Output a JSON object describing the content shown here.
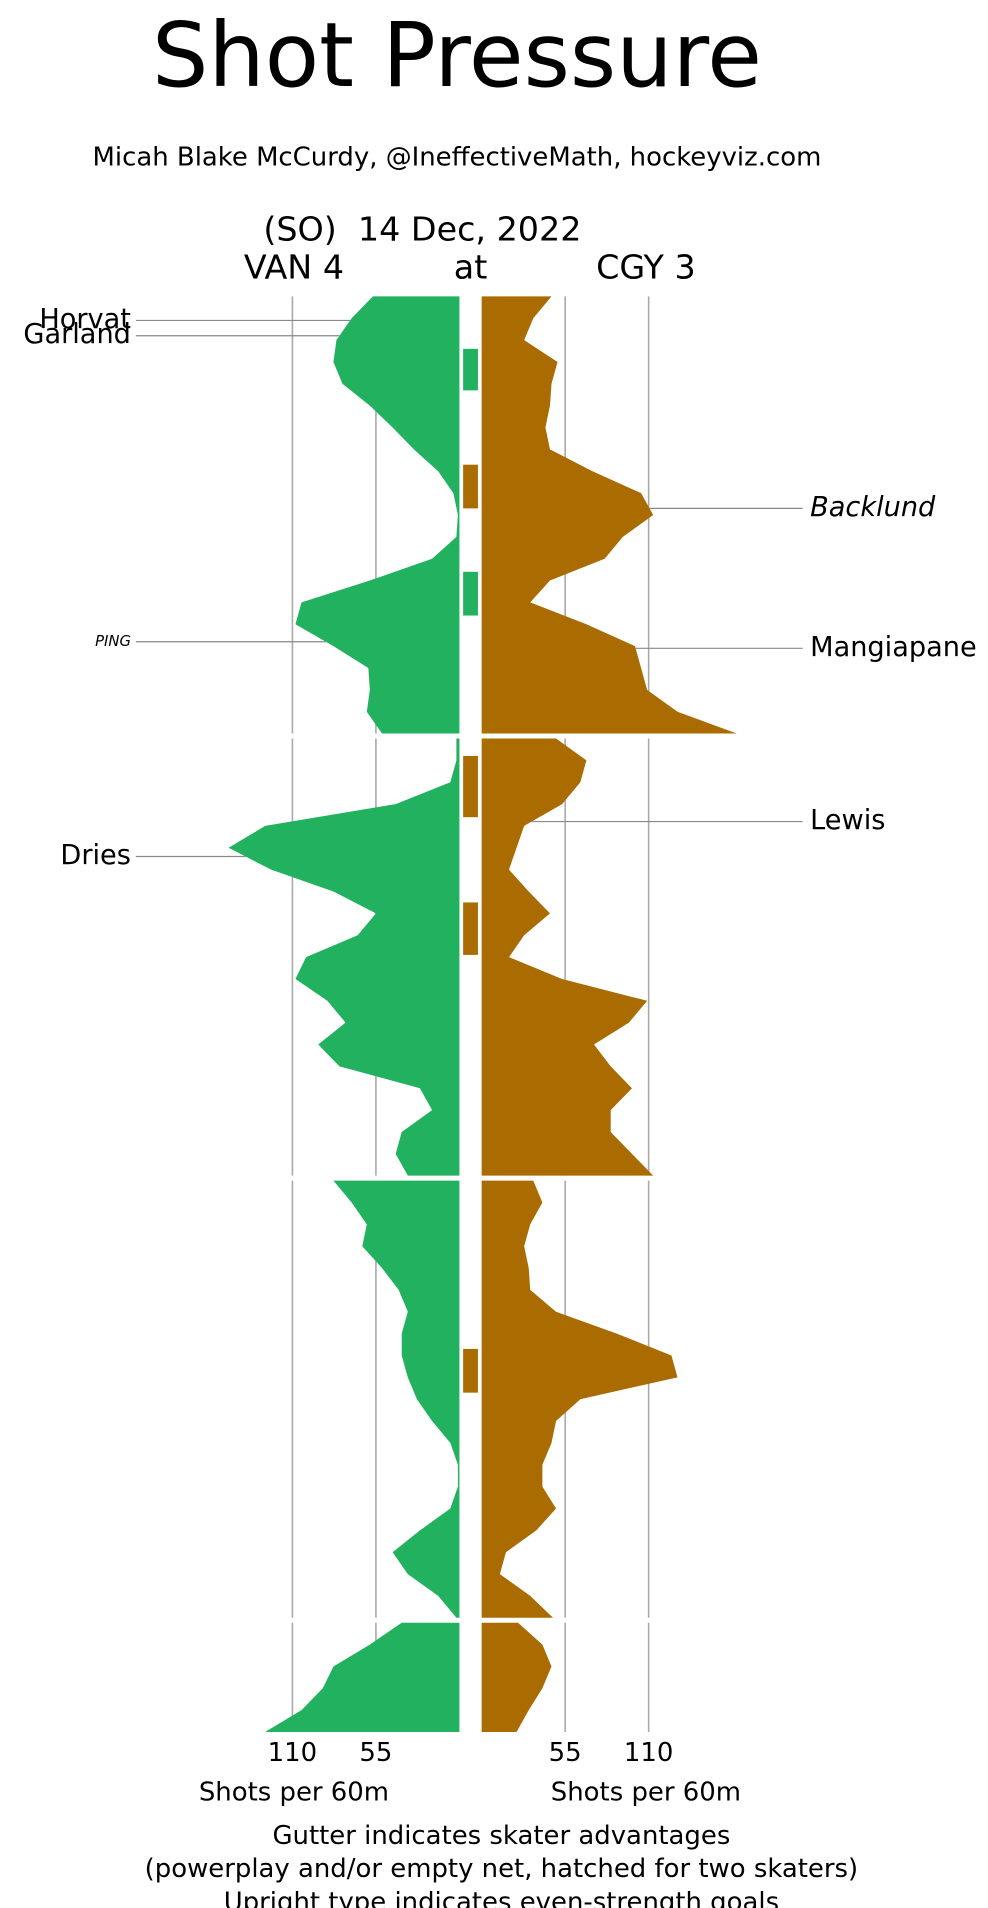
{
  "chart_data": {
    "type": "mirror-area",
    "title": "Shot Pressure",
    "subtitle": "Micah Blake McCurdy, @IneffectiveMath, hockeyviz.com",
    "header": "(SO)  14 Dec, 2022",
    "center_label": "at",
    "x_label": "Shots per 60m",
    "notes": [
      "Gutter indicates skater advantages",
      "(powerplay and/or empty net, hatched for two skaters)",
      "Upright type indicates even-strength goals"
    ],
    "xlim": [
      0,
      170
    ],
    "xticks": [
      55,
      110
    ],
    "grid": true,
    "x": [
      [
        0,
        1,
        2,
        3,
        4,
        5,
        6,
        7,
        8,
        9,
        10,
        11,
        12,
        13,
        14,
        15,
        16,
        17,
        18,
        19,
        20
      ],
      [
        20,
        21,
        22,
        23,
        24,
        25,
        26,
        27,
        28,
        29,
        30,
        31,
        32,
        33,
        34,
        35,
        36,
        37,
        38,
        39,
        40
      ],
      [
        40,
        41,
        42,
        43,
        44,
        45,
        46,
        47,
        48,
        49,
        50,
        51,
        52,
        53,
        54,
        55,
        56,
        57,
        58,
        59,
        60
      ],
      [
        60,
        61,
        62,
        63,
        64,
        65
      ]
    ],
    "series": [
      {
        "name": "VAN 4",
        "color": "#22b15f",
        "side": "left",
        "values": [
          [
            57,
            71,
            81,
            83,
            77,
            59,
            44,
            30,
            14,
            4,
            1,
            2,
            18,
            59,
            104,
            108,
            83,
            60,
            59,
            61,
            51
          ],
          [
            2,
            2,
            6,
            42,
            128,
            152,
            124,
            83,
            55,
            67,
            101,
            108,
            87,
            75,
            93,
            79,
            26,
            18,
            38,
            42,
            34
          ],
          [
            83,
            71,
            61,
            64,
            51,
            40,
            34,
            38,
            38,
            34,
            28,
            18,
            6,
            1,
            1,
            6,
            26,
            44,
            34,
            14,
            2
          ],
          [
            38,
            59,
            83,
            90,
            104,
            128
          ]
        ]
      },
      {
        "name": "CGY 3",
        "color": "#aa6c00",
        "side": "right",
        "values": [
          [
            46,
            34,
            28,
            50,
            46,
            45,
            42,
            45,
            73,
            105,
            113,
            93,
            81,
            45,
            32,
            69,
            101,
            105,
            109,
            129,
            168
          ],
          [
            49,
            69,
            65,
            53,
            28,
            23,
            18,
            31,
            45,
            28,
            18,
            53,
            109,
            97,
            74,
            85,
            99,
            85,
            85,
            99,
            113
          ],
          [
            34,
            40,
            32,
            28,
            31,
            32,
            49,
            89,
            125,
            129,
            65,
            49,
            46,
            40,
            40,
            49,
            36,
            16,
            12,
            32,
            47
          ],
          [
            24,
            40,
            46,
            40,
            31,
            23
          ]
        ]
      }
    ],
    "advantages": [
      {
        "color": "#22b15f",
        "start": 2.4,
        "end": 4.3
      },
      {
        "color": "#aa6c00",
        "start": 7.7,
        "end": 9.7
      },
      {
        "color": "#22b15f",
        "start": 12.6,
        "end": 14.6
      },
      {
        "color": "#aa6c00",
        "start": 20.8,
        "end": 23.6
      },
      {
        "color": "#aa6c00",
        "start": 27.5,
        "end": 29.9
      },
      {
        "color": "#aa6c00",
        "start": 47.7,
        "end": 49.7
      }
    ],
    "annotations": [
      {
        "text": "Horvat",
        "t": 1.1,
        "side": "left",
        "italic": false,
        "small": false
      },
      {
        "text": "Garland",
        "t": 1.8,
        "side": "left",
        "italic": false,
        "small": false
      },
      {
        "text": "PING",
        "t": 15.8,
        "side": "left",
        "italic": true,
        "small": true
      },
      {
        "text": "Dries",
        "t": 25.4,
        "side": "left",
        "italic": false,
        "small": false
      },
      {
        "text": "Backlund",
        "t": 9.7,
        "side": "right",
        "italic": true,
        "small": false
      },
      {
        "text": "Mangiapane",
        "t": 16.1,
        "side": "right",
        "italic": false,
        "small": false
      },
      {
        "text": "Lewis",
        "t": 23.8,
        "side": "right",
        "italic": false,
        "small": false
      }
    ]
  }
}
